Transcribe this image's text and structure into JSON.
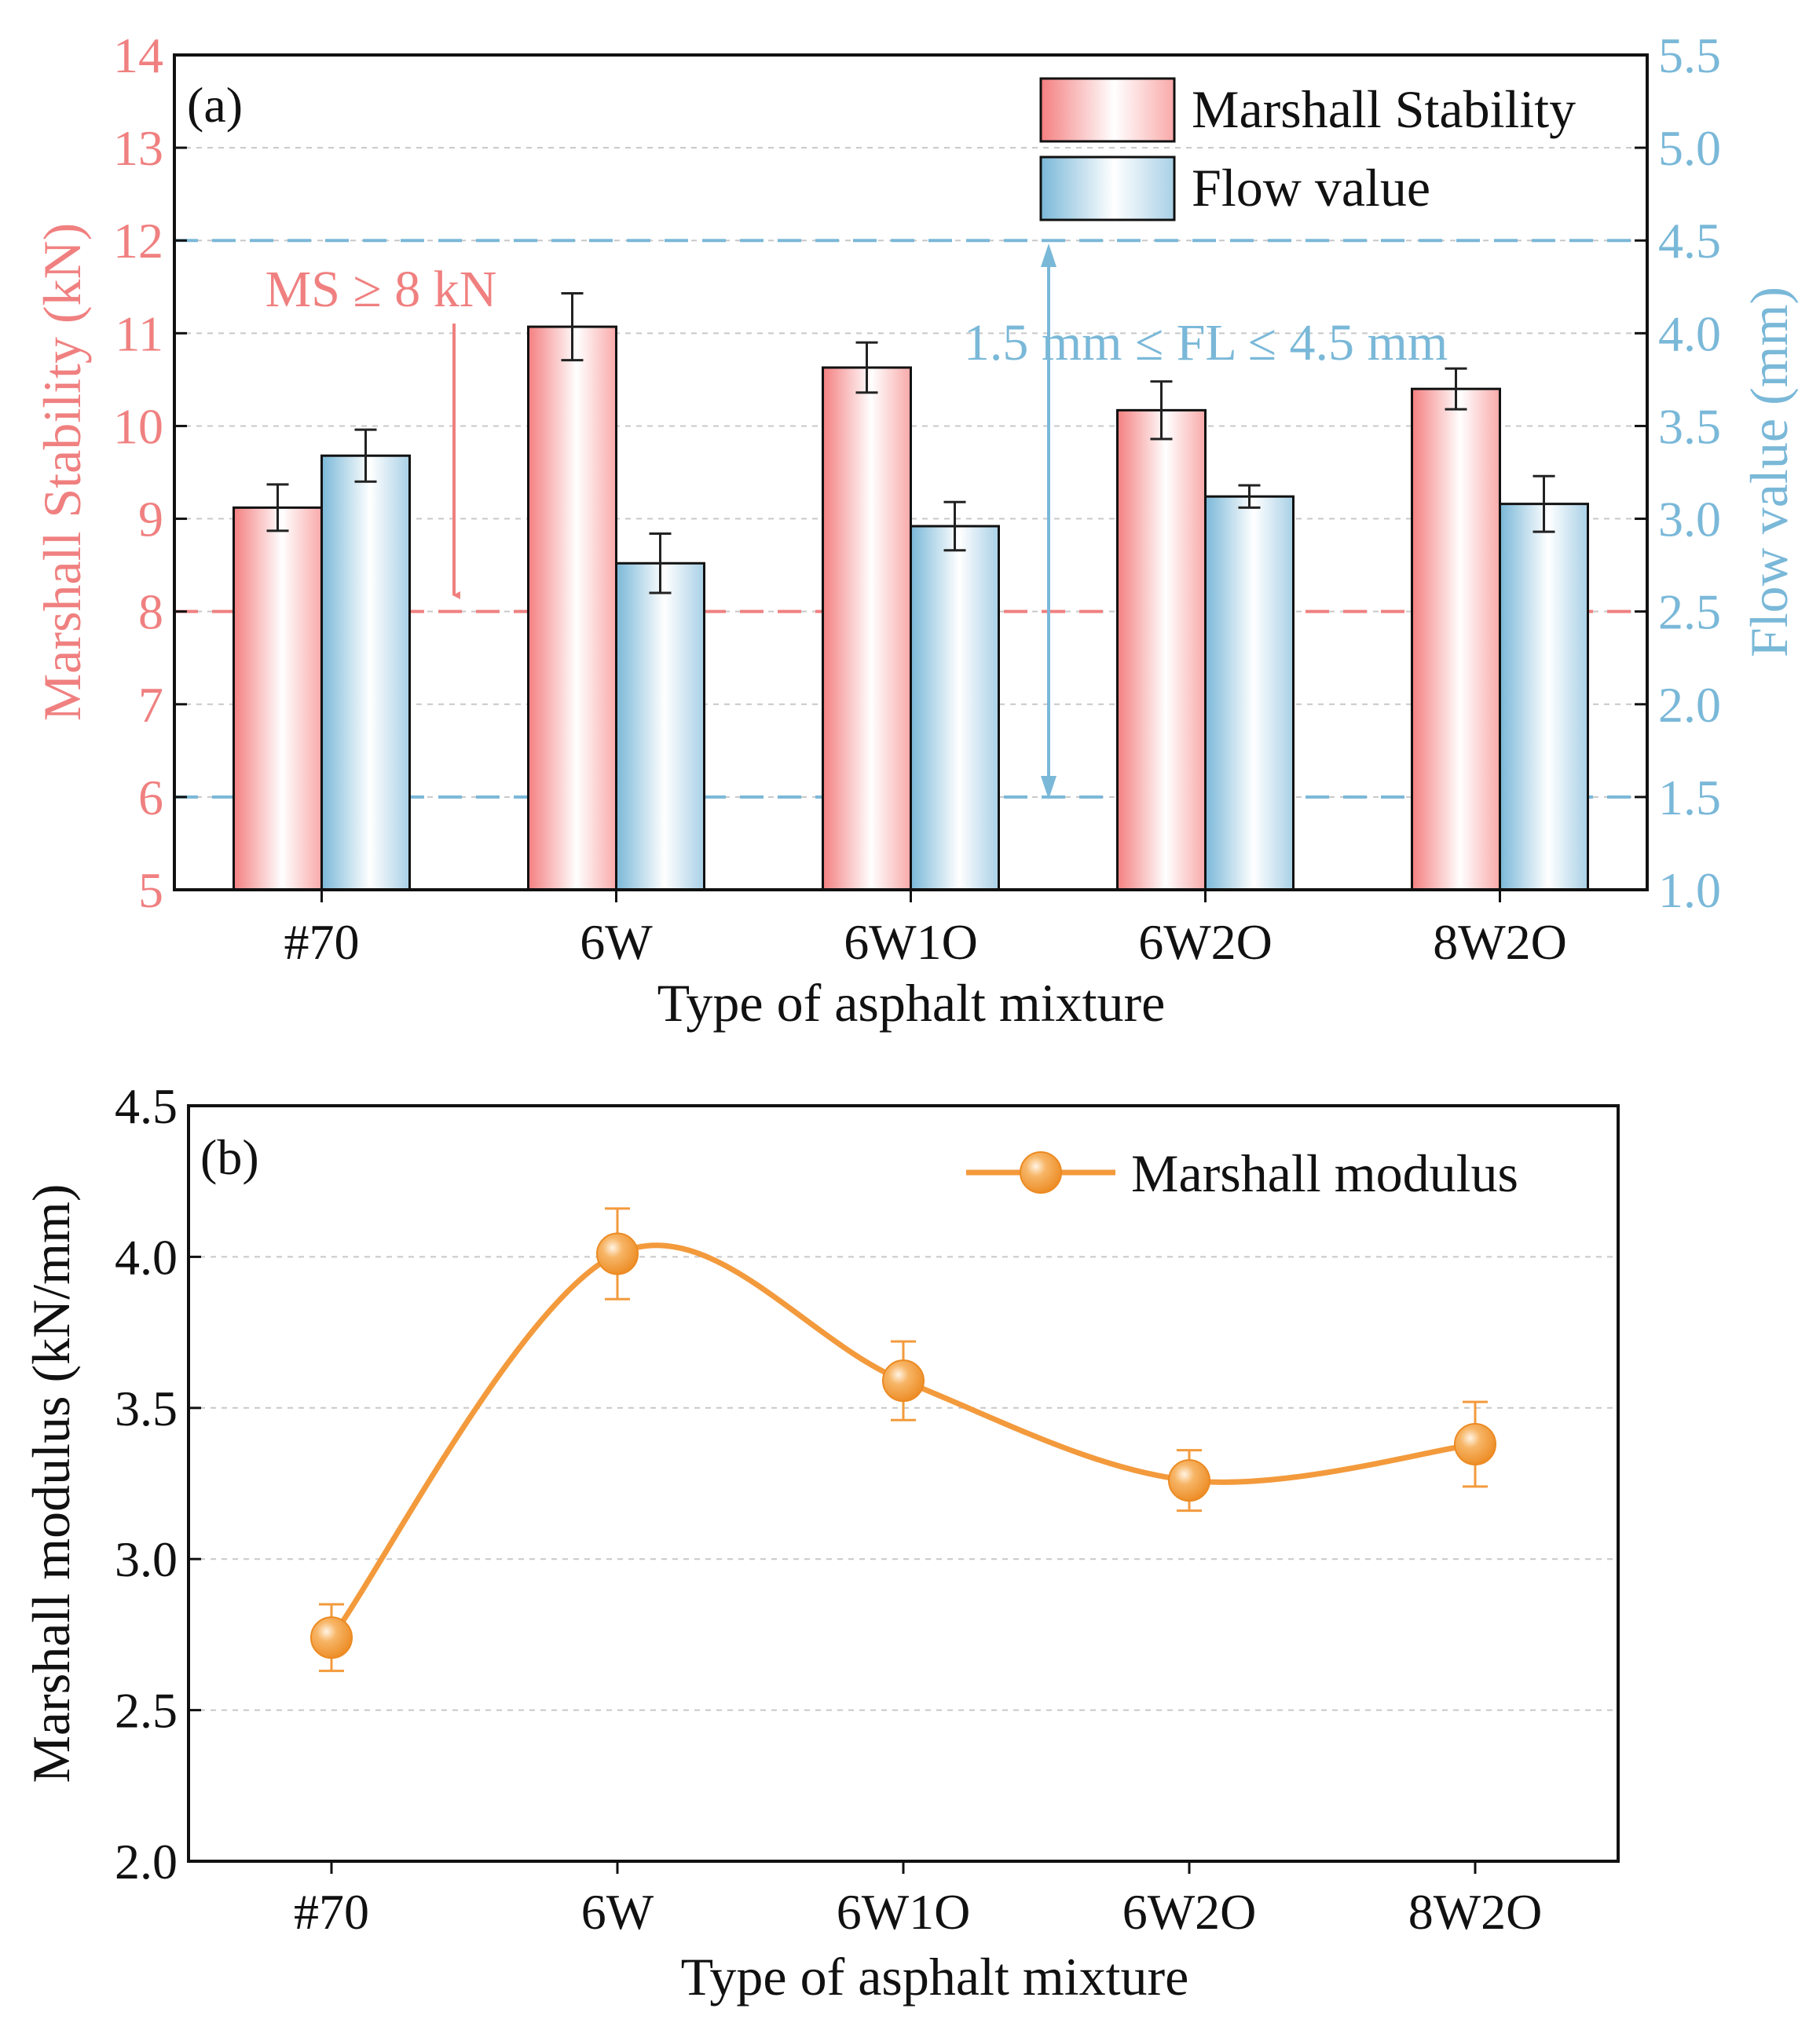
{
  "chart_data": [
    {
      "type": "bar",
      "panel_label": "(a)",
      "categories": [
        "#70",
        "6W",
        "6W1O",
        "6W2O",
        "8W2O"
      ],
      "xlabel": "Type of asphalt mixture",
      "ylabel": "Marshall Stability (kN)",
      "y2label": "Flow value (mm)",
      "ylim": [
        5,
        14
      ],
      "y2lim": [
        1.0,
        5.5
      ],
      "yticks": [
        "5",
        "6",
        "7",
        "8",
        "9",
        "10",
        "11",
        "12",
        "13",
        "14"
      ],
      "y2ticks": [
        "1.0",
        "1.5",
        "2.0",
        "2.5",
        "3.0",
        "3.5",
        "4.0",
        "4.5",
        "5.0",
        "5.5"
      ],
      "series": [
        {
          "name": "Marshall Stability",
          "axis": "left",
          "values": [
            9.12,
            11.07,
            10.63,
            10.17,
            10.4
          ],
          "errors": [
            0.25,
            0.36,
            0.27,
            0.31,
            0.22
          ],
          "color": "#f08080"
        },
        {
          "name": "Flow value",
          "axis": "right",
          "values": [
            3.34,
            2.76,
            2.96,
            3.12,
            3.08
          ],
          "errors": [
            0.14,
            0.16,
            0.13,
            0.06,
            0.15
          ],
          "color": "#7ab8d8"
        }
      ],
      "annotations": {
        "ms_limit_label": "MS ≥ 8 kN",
        "ms_limit_value": 8,
        "fl_limit_label": "1.5 mm ≤ FL ≤ 4.5 mm",
        "fl_limit_values": [
          1.5,
          4.5
        ]
      },
      "legend_position": "top-right",
      "grid": true
    },
    {
      "type": "line",
      "panel_label": "(b)",
      "categories": [
        "#70",
        "6W",
        "6W1O",
        "6W2O",
        "8W2O"
      ],
      "xlabel": "Type of asphalt mixture",
      "ylabel": "Marshall modulus (kN/mm)",
      "ylim": [
        2.0,
        4.5
      ],
      "yticks": [
        "2.0",
        "2.5",
        "3.0",
        "3.5",
        "4.0",
        "4.5"
      ],
      "series": [
        {
          "name": "Marshall modulus",
          "values": [
            2.74,
            4.01,
            3.59,
            3.26,
            3.38
          ],
          "errors": [
            0.11,
            0.15,
            0.13,
            0.1,
            0.14
          ],
          "color": "#f39a3c"
        }
      ],
      "legend_position": "top-right",
      "grid": true
    }
  ]
}
